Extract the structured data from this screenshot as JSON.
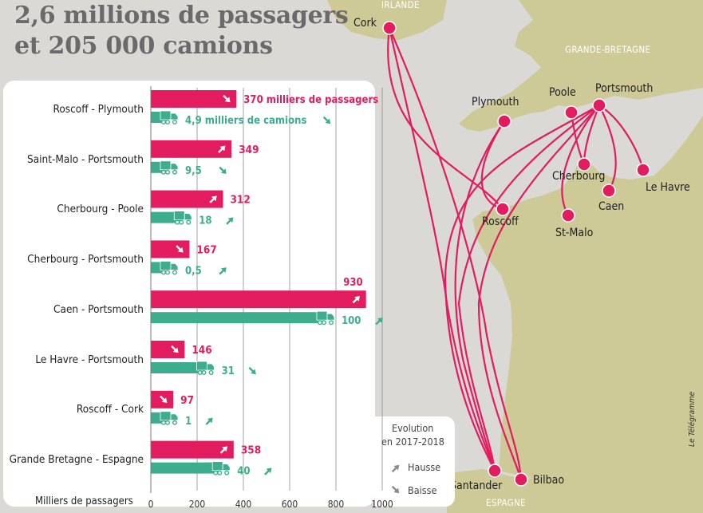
{
  "title_line1": "2,6 millions de passagers",
  "title_line2": "et 205 000 camions",
  "map_labels": {
    "countries": {
      "ireland": "IRLANDE",
      "gb": "GRANDE-BRETAGNE",
      "spain": "ESPAGNE"
    },
    "ports": {
      "cork": "Cork",
      "plymouth": "Plymouth",
      "poole": "Poole",
      "portsmouth": "Portsmouth",
      "cherbourg": "Cherbourg",
      "le_havre": "Le Havre",
      "caen": "Caen",
      "roscoff": "Roscoff",
      "st_malo": "St-Malo",
      "santander": "Santander",
      "bilbao": "Bilbao"
    }
  },
  "legend": {
    "title_line1": "Evolution",
    "title_line2": "en 2017-2018",
    "up": "Hausse",
    "down": "Baisse"
  },
  "credit": "Le Télégramme",
  "colors": {
    "passengers": "#e31b5f",
    "trucks": "#3dad8e",
    "land": "#cdca98",
    "sea": "#dad9d5"
  },
  "chart_data": {
    "type": "bar",
    "orientation": "horizontal",
    "xlabel": "Milliers de passagers",
    "x_ticks": [
      "0",
      "200",
      "400",
      "600",
      "800",
      "1000"
    ],
    "xlim": [
      0,
      1000
    ],
    "grid": true,
    "first_passenger_label": "370 milliers de passagers",
    "first_truck_label": "4,9 milliers de camions",
    "categories": [
      "Roscoff - Plymouth",
      "Saint-Malo - Portsmouth",
      "Cherbourg - Poole",
      "Cherbourg - Portsmouth",
      "Caen - Portsmouth",
      "Le Havre - Portsmouth",
      "Roscoff - Cork",
      "Grande Bretagne - Espagne"
    ],
    "series": [
      {
        "values": [
          370,
          349,
          312,
          167,
          930,
          146,
          97,
          358
        ],
        "labels": [
          "370",
          "349",
          "312",
          "167",
          "930",
          "146",
          "97",
          "358"
        ],
        "trend": [
          "down",
          "up",
          "up",
          "down",
          "up",
          "down",
          "down",
          "up"
        ]
      },
      {
        "values": [
          4.9,
          9.5,
          18,
          0.5,
          100,
          31,
          1,
          40
        ],
        "labels": [
          "4,9",
          "9,5",
          "18",
          "0,5",
          "100",
          "31",
          "1",
          "40"
        ],
        "trend": [
          "down",
          "down",
          "up",
          "up",
          "up",
          "down",
          "up",
          "up"
        ]
      }
    ]
  }
}
